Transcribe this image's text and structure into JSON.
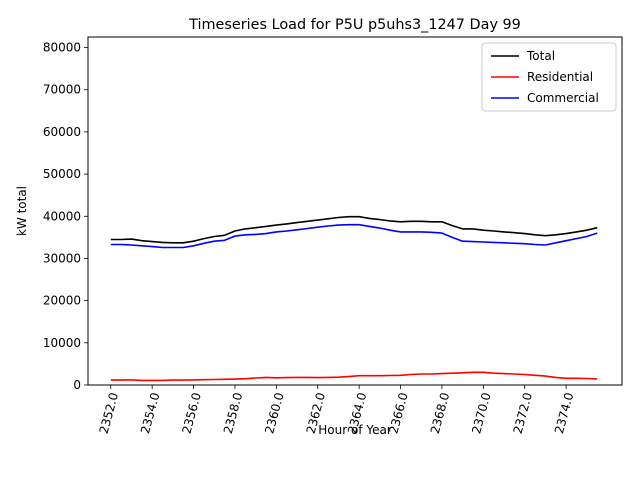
{
  "chart_data": {
    "type": "line",
    "title": "Timeseries Load for P5U p5uhs3_1247  Day 99",
    "xlabel": "Hour of Year",
    "ylabel": "kW total",
    "xlim": [
      2350.9,
      2376.7
    ],
    "ylim": [
      0,
      82500
    ],
    "xticks": [
      2352,
      2354,
      2356,
      2358,
      2360,
      2362,
      2364,
      2366,
      2368,
      2370,
      2372,
      2374
    ],
    "xtick_labels": [
      "2352.0",
      "2354.0",
      "2356.0",
      "2358.0",
      "2360.0",
      "2362.0",
      "2364.0",
      "2366.0",
      "2368.0",
      "2370.0",
      "2372.0",
      "2374.0"
    ],
    "yticks": [
      0,
      10000,
      20000,
      30000,
      40000,
      50000,
      60000,
      70000,
      80000
    ],
    "ytick_labels": [
      "0",
      "10000",
      "20000",
      "30000",
      "40000",
      "50000",
      "60000",
      "70000",
      "80000"
    ],
    "legend_position": "top-right",
    "x": [
      2352.0,
      2352.5,
      2353.0,
      2353.5,
      2354.0,
      2354.5,
      2355.0,
      2355.5,
      2356.0,
      2356.5,
      2357.0,
      2357.5,
      2358.0,
      2358.5,
      2359.0,
      2359.5,
      2360.0,
      2360.5,
      2361.0,
      2361.5,
      2362.0,
      2362.5,
      2363.0,
      2363.5,
      2364.0,
      2364.5,
      2365.0,
      2365.5,
      2366.0,
      2366.5,
      2367.0,
      2367.5,
      2368.0,
      2368.5,
      2369.0,
      2369.5,
      2370.0,
      2370.5,
      2371.0,
      2371.5,
      2372.0,
      2372.5,
      2373.0,
      2373.5,
      2374.0,
      2374.5,
      2375.0,
      2375.5
    ],
    "series": [
      {
        "name": "Total",
        "color": "#000000",
        "values": [
          34500,
          34500,
          34600,
          34200,
          34000,
          33800,
          33700,
          33700,
          34100,
          34700,
          35200,
          35500,
          36500,
          37000,
          37300,
          37600,
          37900,
          38200,
          38500,
          38800,
          39100,
          39400,
          39700,
          39900,
          39900,
          39500,
          39200,
          38900,
          38700,
          38800,
          38800,
          38700,
          38700,
          37800,
          37000,
          37000,
          36700,
          36500,
          36300,
          36100,
          35900,
          35600,
          35400,
          35600,
          35900,
          36300,
          36700,
          37300
        ]
      },
      {
        "name": "Residential",
        "color": "#ff0000",
        "values": [
          1200,
          1150,
          1200,
          1100,
          1100,
          1100,
          1150,
          1150,
          1200,
          1250,
          1300,
          1350,
          1400,
          1500,
          1650,
          1800,
          1700,
          1750,
          1800,
          1800,
          1750,
          1800,
          1850,
          2000,
          2200,
          2200,
          2200,
          2250,
          2300,
          2500,
          2600,
          2600,
          2700,
          2800,
          2900,
          3000,
          3000,
          2800,
          2700,
          2600,
          2500,
          2300,
          2100,
          1800,
          1600,
          1600,
          1550,
          1450
        ]
      },
      {
        "name": "Commercial",
        "color": "#0000ff",
        "values": [
          33300,
          33300,
          33200,
          33000,
          32800,
          32600,
          32600,
          32600,
          33000,
          33600,
          34100,
          34300,
          35300,
          35600,
          35700,
          35900,
          36300,
          36500,
          36800,
          37100,
          37400,
          37700,
          37900,
          38000,
          38000,
          37600,
          37200,
          36700,
          36300,
          36300,
          36300,
          36200,
          36000,
          35000,
          34100,
          34000,
          33900,
          33800,
          33700,
          33600,
          33500,
          33300,
          33200,
          33700,
          34200,
          34700,
          35200,
          36000
        ]
      }
    ]
  }
}
